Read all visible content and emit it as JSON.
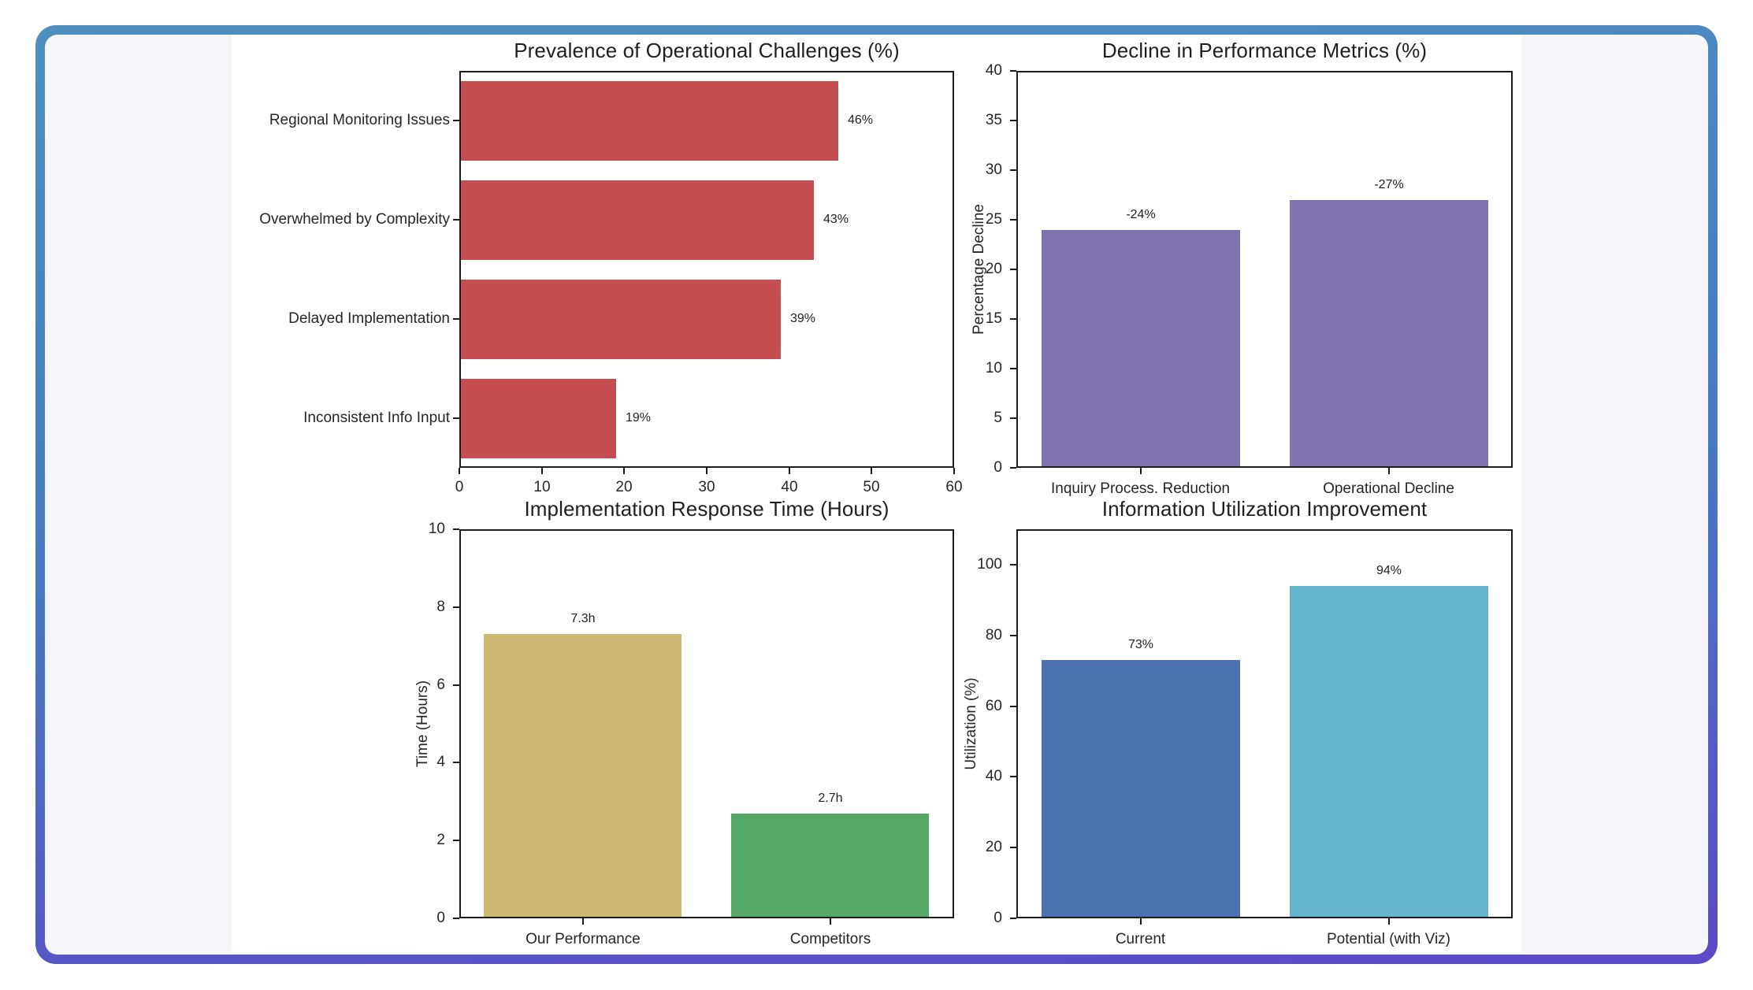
{
  "page": {
    "background": "#FFFFFF",
    "card_gradient_top": "#4E8FBF",
    "card_gradient_bottom": "#5C49C6",
    "panel_background": "#F4F6FA",
    "figure_background": "#FFFFFF",
    "axis_color": "#1C1C1C",
    "text_color": "#262626"
  },
  "chart_data": [
    {
      "type": "bar",
      "orientation": "horizontal",
      "title": "Prevalence of Operational Challenges (%)",
      "categories": [
        "Regional Monitoring Issues",
        "Overwhelmed by Complexity",
        "Delayed Implementation",
        "Inconsistent Info Input"
      ],
      "values": [
        46,
        43,
        39,
        19
      ],
      "bar_labels": [
        "46%",
        "43%",
        "39%",
        "19%"
      ],
      "xlim": [
        0,
        60
      ],
      "xticks": [
        0,
        10,
        20,
        30,
        40,
        50,
        60
      ],
      "xlabel": "",
      "ylabel": "",
      "grid": false,
      "legend": "none",
      "bar_colors": [
        "#C44E52",
        "#C44E52",
        "#C44E52",
        "#C44E52"
      ]
    },
    {
      "type": "bar",
      "orientation": "vertical",
      "title": "Decline in Performance Metrics (%)",
      "categories": [
        "Inquiry Process. Reduction",
        "Operational Decline"
      ],
      "values": [
        24,
        27
      ],
      "bar_labels": [
        "-24%",
        "-27%"
      ],
      "ylim": [
        0,
        40
      ],
      "yticks": [
        0,
        5,
        10,
        15,
        20,
        25,
        30,
        35,
        40
      ],
      "xlabel": "",
      "ylabel": "Percentage Decline",
      "grid": false,
      "legend": "none",
      "bar_colors": [
        "#8172B2",
        "#8172B2"
      ]
    },
    {
      "type": "bar",
      "orientation": "vertical",
      "title": "Implementation Response Time (Hours)",
      "categories": [
        "Our Performance",
        "Competitors"
      ],
      "values": [
        7.3,
        2.7
      ],
      "bar_labels": [
        "7.3h",
        "2.7h"
      ],
      "ylim": [
        0,
        10
      ],
      "yticks": [
        0,
        2,
        4,
        6,
        8,
        10
      ],
      "xlabel": "",
      "ylabel": "Time (Hours)",
      "grid": false,
      "legend": "none",
      "bar_colors": [
        "#CCB974",
        "#55A868"
      ]
    },
    {
      "type": "bar",
      "orientation": "vertical",
      "title": "Information Utilization Improvement",
      "categories": [
        "Current",
        "Potential (with Viz)"
      ],
      "values": [
        73,
        94
      ],
      "bar_labels": [
        "73%",
        "94%"
      ],
      "ylim": [
        0,
        110
      ],
      "yticks": [
        0,
        20,
        40,
        60,
        80,
        100
      ],
      "xlabel": "",
      "ylabel": "Utilization (%)",
      "grid": false,
      "legend": "none",
      "bar_colors": [
        "#4C72B0",
        "#64B5CD"
      ]
    }
  ]
}
